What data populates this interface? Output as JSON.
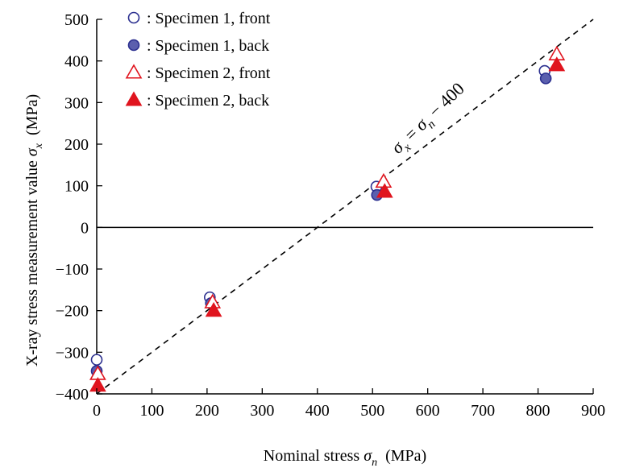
{
  "chart_data": {
    "type": "scatter",
    "title": "",
    "xlabel": {
      "prefix": "Nominal stress ",
      "symbol": "σ",
      "sub": "n",
      "suffix": "  (MPa)"
    },
    "ylabel": {
      "prefix": "X-ray stress measurement value ",
      "symbol": "σ",
      "sub": "x",
      "suffix": "  (MPa)"
    },
    "xlim": [
      0,
      900
    ],
    "ylim": [
      -400,
      500
    ],
    "xticks": [
      0,
      100,
      200,
      300,
      400,
      500,
      600,
      700,
      800,
      900
    ],
    "yticks": [
      -400,
      -300,
      -200,
      -100,
      0,
      100,
      200,
      300,
      400,
      500
    ],
    "ytick_labels": [
      "−400",
      "−300",
      "−200",
      "−100",
      "0",
      "100",
      "200",
      "300",
      "400",
      "500"
    ],
    "zero_line": true,
    "legend_position": "top-left",
    "reference_line": {
      "x": [
        0,
        900
      ],
      "y": [
        -400,
        500
      ],
      "style": "dashed",
      "label": {
        "s1": "σ",
        "sub1": "x",
        "eq": " = ",
        "s2": "σ",
        "sub2": "n",
        "tail": " − 400"
      }
    },
    "series": [
      {
        "name": "Specimen 1, front",
        "marker": "circle-open",
        "color": "#2b2f8f",
        "points": [
          [
            0,
            -318
          ],
          [
            205,
            -168
          ],
          [
            507,
            98
          ],
          [
            812,
            376
          ]
        ]
      },
      {
        "name": "Specimen 1, back",
        "marker": "circle-filled",
        "color": "#2b2f8f",
        "points": [
          [
            0,
            -345
          ],
          [
            207,
            -182
          ],
          [
            508,
            78
          ],
          [
            814,
            358
          ]
        ]
      },
      {
        "name": "Specimen 2, front",
        "marker": "triangle-open",
        "color": "#e0141e",
        "points": [
          [
            2,
            -352
          ],
          [
            210,
            -180
          ],
          [
            520,
            110
          ],
          [
            834,
            416
          ]
        ]
      },
      {
        "name": "Specimen 2, back",
        "marker": "triangle-filled",
        "color": "#e0141e",
        "points": [
          [
            2,
            -380
          ],
          [
            212,
            -200
          ],
          [
            522,
            86
          ],
          [
            834,
            390
          ]
        ]
      }
    ]
  }
}
